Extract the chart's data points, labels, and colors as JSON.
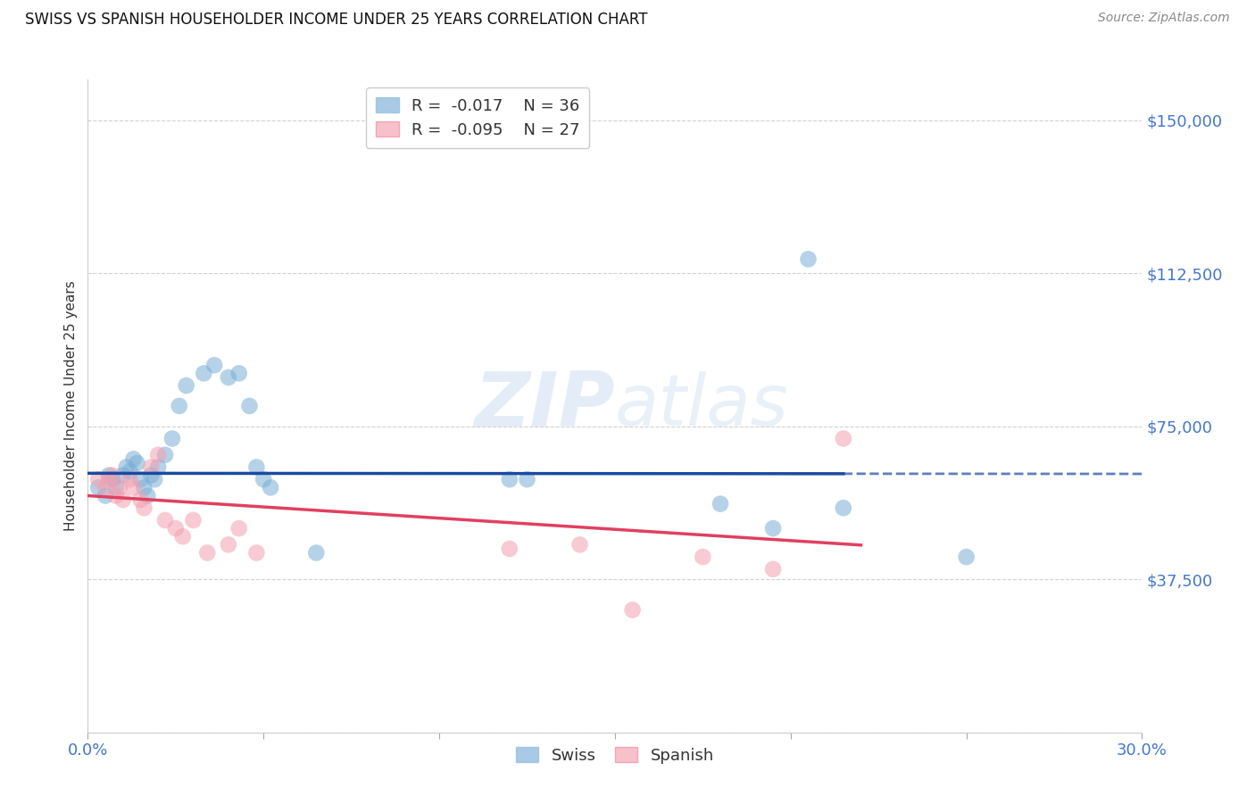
{
  "title": "SWISS VS SPANISH HOUSEHOLDER INCOME UNDER 25 YEARS CORRELATION CHART",
  "source": "Source: ZipAtlas.com",
  "ylabel": "Householder Income Under 25 years",
  "xlim": [
    0.0,
    0.3
  ],
  "ylim": [
    0,
    160000
  ],
  "yticks": [
    0,
    37500,
    75000,
    112500,
    150000
  ],
  "ytick_labels": [
    "",
    "$37,500",
    "$75,000",
    "$112,500",
    "$150,000"
  ],
  "xticks": [
    0.0,
    0.05,
    0.1,
    0.15,
    0.2,
    0.25,
    0.3
  ],
  "xtick_labels": [
    "0.0%",
    "",
    "",
    "",
    "",
    "",
    "30.0%"
  ],
  "swiss_color": "#7aaed6",
  "spanish_color": "#f4a0b0",
  "trendline_swiss_color": "#1a4a9f",
  "trendline_spanish_color": "#e04060",
  "swiss_R": -0.017,
  "swiss_N": 36,
  "spanish_R": -0.095,
  "spanish_N": 27,
  "swiss_x": [
    0.003,
    0.005,
    0.006,
    0.007,
    0.008,
    0.01,
    0.011,
    0.012,
    0.013,
    0.014,
    0.015,
    0.016,
    0.017,
    0.018,
    0.019,
    0.02,
    0.022,
    0.024,
    0.026,
    0.028,
    0.033,
    0.036,
    0.04,
    0.043,
    0.046,
    0.048,
    0.05,
    0.052,
    0.065,
    0.12,
    0.125,
    0.18,
    0.195,
    0.205,
    0.215,
    0.25
  ],
  "swiss_y": [
    60000,
    58000,
    63000,
    62000,
    60000,
    63000,
    65000,
    64000,
    67000,
    66000,
    62000,
    60000,
    58000,
    63000,
    62000,
    65000,
    68000,
    72000,
    80000,
    85000,
    88000,
    90000,
    87000,
    88000,
    80000,
    65000,
    62000,
    60000,
    44000,
    62000,
    62000,
    56000,
    50000,
    116000,
    55000,
    43000
  ],
  "spanish_x": [
    0.003,
    0.005,
    0.006,
    0.007,
    0.008,
    0.009,
    0.01,
    0.012,
    0.013,
    0.015,
    0.016,
    0.018,
    0.02,
    0.022,
    0.025,
    0.027,
    0.03,
    0.034,
    0.04,
    0.043,
    0.048,
    0.12,
    0.14,
    0.155,
    0.175,
    0.195,
    0.215
  ],
  "spanish_y": [
    62000,
    60000,
    62000,
    63000,
    58000,
    60000,
    57000,
    62000,
    60000,
    57000,
    55000,
    65000,
    68000,
    52000,
    50000,
    48000,
    52000,
    44000,
    46000,
    50000,
    44000,
    45000,
    46000,
    30000,
    43000,
    40000,
    72000
  ],
  "background_color": "#ffffff",
  "grid_color": "#cccccc",
  "axis_color": "#4477cc",
  "swiss_trendline_solid_end": 0.215,
  "swiss_trendline_dash_end": 0.3
}
